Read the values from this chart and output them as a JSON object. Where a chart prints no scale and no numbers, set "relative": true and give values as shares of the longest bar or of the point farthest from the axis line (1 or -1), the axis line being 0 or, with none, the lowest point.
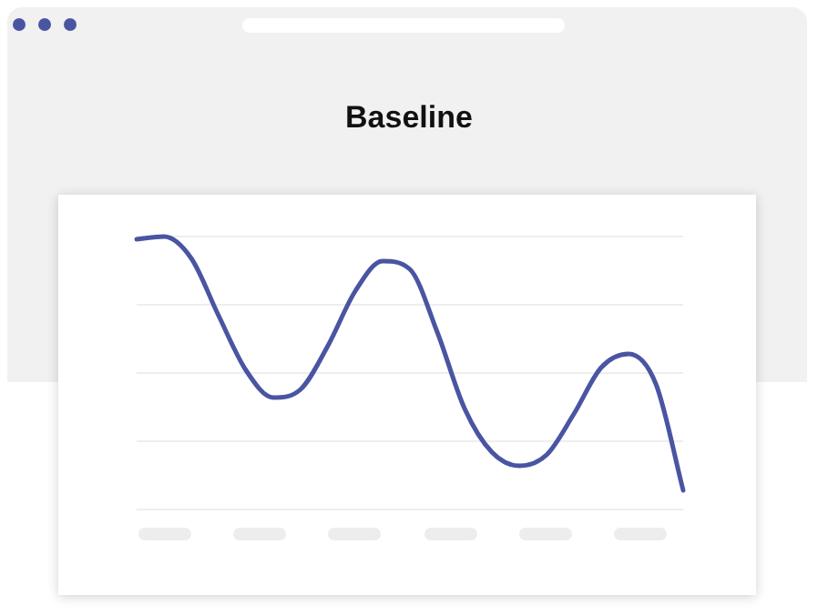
{
  "chart_data": {
    "type": "line",
    "title": "Baseline",
    "relative": true,
    "grid": "y",
    "marker": "none",
    "categories": [
      null,
      null,
      null,
      null,
      null,
      null,
      null,
      null,
      null,
      null,
      null,
      null,
      null,
      null,
      null,
      null,
      null,
      null,
      null,
      null,
      null
    ],
    "series": [
      {
        "color": "#4a55a2",
        "values": [
          0.99,
          1,
          0.92,
          0.71,
          0.51,
          0.41,
          0.44,
          0.6,
          0.8,
          0.91,
          0.88,
          0.65,
          0.37,
          0.21,
          0.16,
          0.2,
          0.35,
          0.52,
          0.57,
          0.46,
          0.07
        ]
      }
    ]
  }
}
